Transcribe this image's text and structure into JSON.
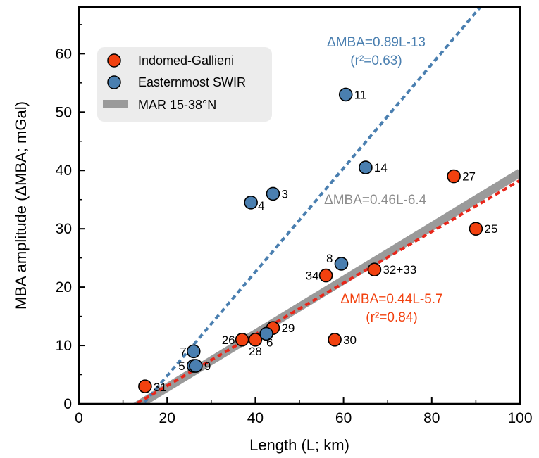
{
  "chart_data": {
    "type": "scatter",
    "xlabel": "Length (L; km)",
    "ylabel": "MBA amplitude (ΔMBA; mGal)",
    "xlim": [
      0,
      100
    ],
    "ylim": [
      0,
      68
    ],
    "xticks": [
      0,
      20,
      40,
      60,
      80,
      100
    ],
    "yticks": [
      0,
      10,
      20,
      30,
      40,
      50,
      60
    ],
    "legend_position": "top-left",
    "grid": false,
    "legend": [
      {
        "label": "Indomed-Gallieni",
        "type": "marker",
        "color": "#f2410f"
      },
      {
        "label": "Easternmost SWIR",
        "type": "marker",
        "color": "#4a7fb0"
      },
      {
        "label": "MAR 15-38°N",
        "type": "band",
        "color": "#9a9a9a"
      }
    ],
    "series": [
      {
        "name": "Indomed-Gallieni",
        "color": "#f2410f",
        "points": [
          {
            "x": 15,
            "y": 3,
            "label": "31"
          },
          {
            "x": 37,
            "y": 11,
            "label": "26"
          },
          {
            "x": 40,
            "y": 11,
            "label": "28"
          },
          {
            "x": 44,
            "y": 13,
            "label": "29"
          },
          {
            "x": 56,
            "y": 22,
            "label": "34"
          },
          {
            "x": 58,
            "y": 11,
            "label": "30"
          },
          {
            "x": 67,
            "y": 23,
            "label": "32+33"
          },
          {
            "x": 85,
            "y": 39,
            "label": "27"
          },
          {
            "x": 90,
            "y": 30,
            "label": "25"
          }
        ]
      },
      {
        "name": "Easternmost SWIR",
        "color": "#4a7fb0",
        "points": [
          {
            "x": 26,
            "y": 9,
            "label": "7"
          },
          {
            "x": 26,
            "y": 6.5,
            "label": "5"
          },
          {
            "x": 26.5,
            "y": 6.5,
            "label": "9"
          },
          {
            "x": 42.5,
            "y": 12,
            "label": "6"
          },
          {
            "x": 39,
            "y": 34.5,
            "label": "4"
          },
          {
            "x": 44,
            "y": 36,
            "label": "3"
          },
          {
            "x": 59.5,
            "y": 24,
            "label": "8"
          },
          {
            "x": 65,
            "y": 40.5,
            "label": "14"
          },
          {
            "x": 60.5,
            "y": 53,
            "label": "11"
          }
        ]
      }
    ],
    "fits": [
      {
        "name": "Easternmost SWIR fit",
        "slope": 0.89,
        "intercept": -13,
        "color": "#4a7fb0",
        "style": "dotted",
        "equation": "ΔMBA=0.89L-13",
        "r2": "(r²=0.63)"
      },
      {
        "name": "MAR 15-38°N",
        "slope": 0.46,
        "intercept": -6.4,
        "color": "#9a9a9a",
        "style": "band",
        "equation": "ΔMBA=0.46L-6.4"
      },
      {
        "name": "Indomed-Gallieni fit",
        "slope": 0.44,
        "intercept": -5.7,
        "color": "#e8261a",
        "style": "dotted",
        "equation": "ΔMBA=0.44L-5.7",
        "r2": "(r²=0.84)"
      }
    ]
  }
}
